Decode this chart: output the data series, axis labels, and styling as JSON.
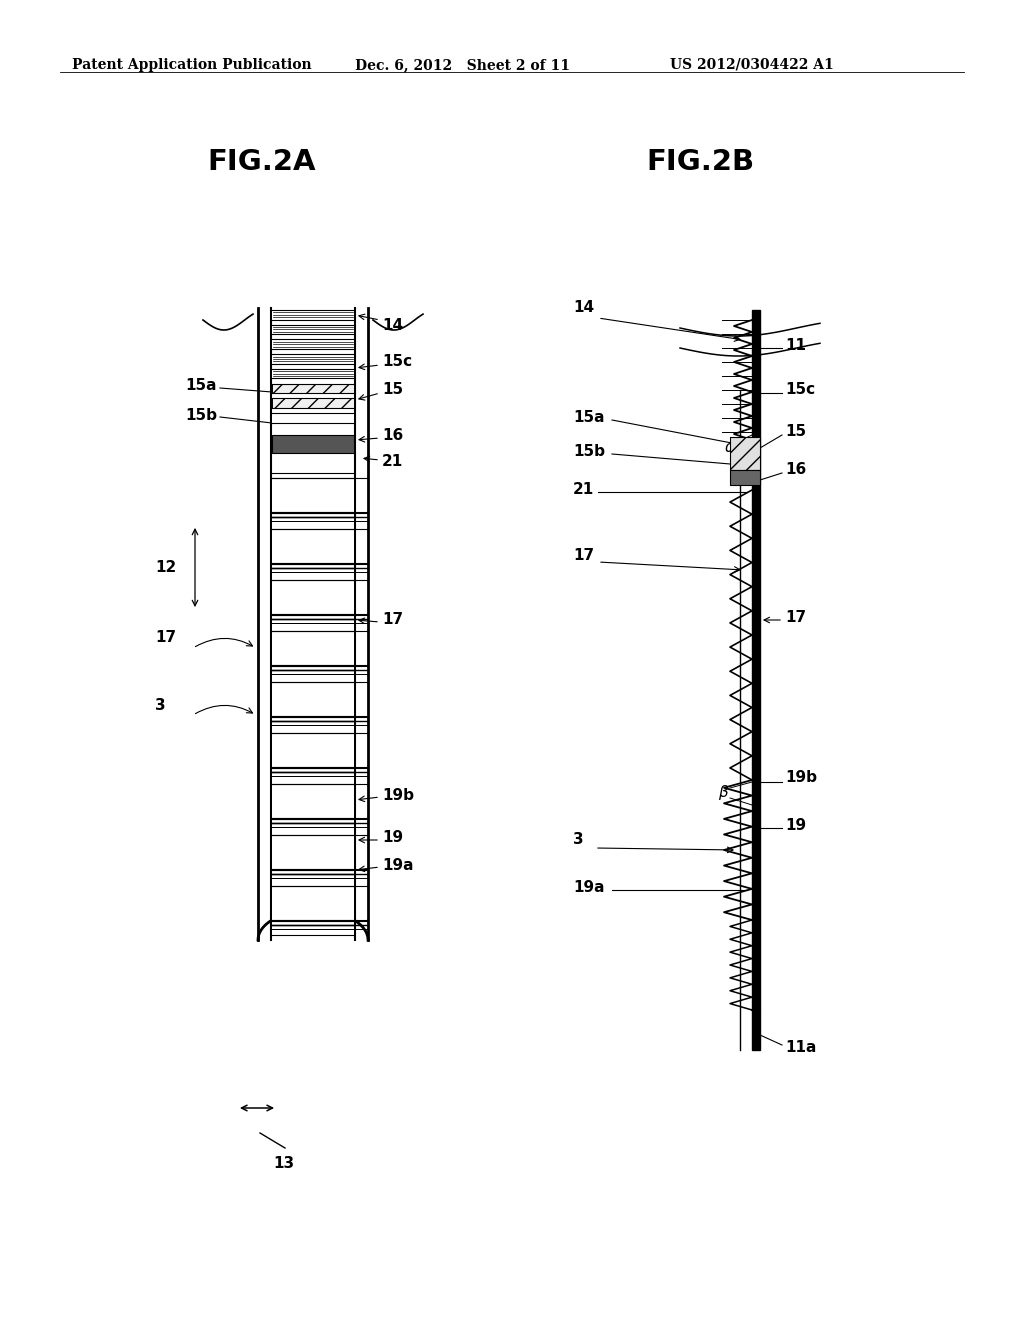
{
  "background_color": "#ffffff",
  "header_left": "Patent Application Publication",
  "header_center": "Dec. 6, 2012   Sheet 2 of 11",
  "header_right": "US 2012/0304422 A1",
  "fig2a_title": "FIG.2A",
  "fig2b_title": "FIG.2B"
}
